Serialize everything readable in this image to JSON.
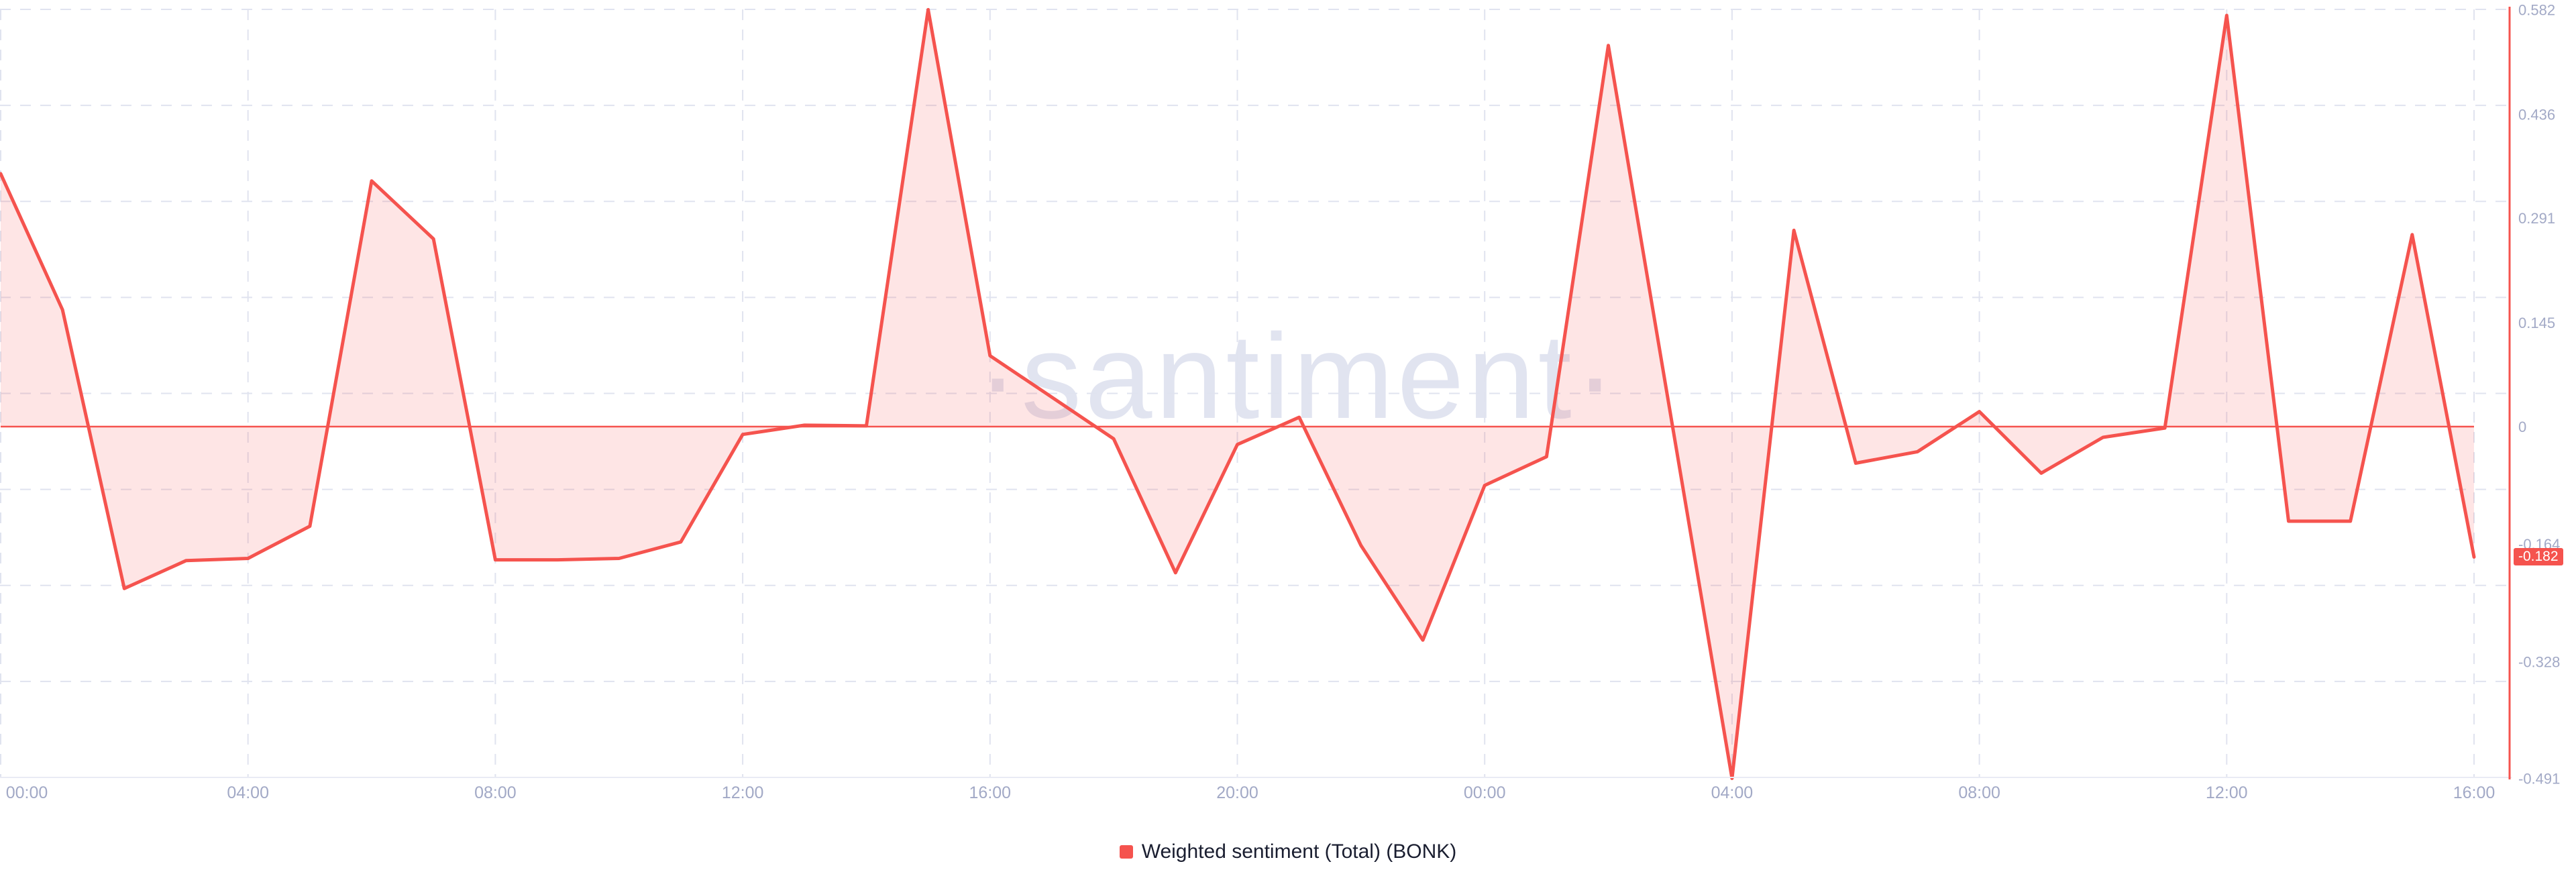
{
  "watermark": "·santiment·",
  "legend": {
    "label": "Weighted sentiment (Total) (BONK)",
    "marker_color": "#f5534e"
  },
  "y_axis": {
    "labels": [
      "0.582",
      "0.436",
      "0.291",
      "0.145",
      "0",
      "-0.164",
      "-0.328",
      "-0.491"
    ],
    "values": [
      0.582,
      0.436,
      0.291,
      0.145,
      0,
      -0.164,
      -0.328,
      -0.491
    ],
    "current_value_badge": "-0.182",
    "label_color": "#a2a9c6",
    "axis_line_color": "#f5534e"
  },
  "x_axis": {
    "labels": [
      "00:00",
      "04:00",
      "08:00",
      "12:00",
      "16:00",
      "20:00",
      "00:00",
      "04:00",
      "08:00",
      "12:00",
      "16:00"
    ],
    "tick_hours": [
      0,
      4,
      8,
      12,
      16,
      20,
      24,
      28,
      32,
      36,
      40
    ],
    "label_color": "#a2a9c6"
  },
  "chart_data": {
    "type": "area",
    "title": "Weighted sentiment (Total) (BONK)",
    "x": [
      "00:00",
      "01:00",
      "02:00",
      "03:00",
      "04:00",
      "05:00",
      "06:00",
      "07:00",
      "08:00",
      "09:00",
      "10:00",
      "11:00",
      "12:00",
      "13:00",
      "14:00",
      "15:00",
      "16:00",
      "17:00",
      "18:00",
      "19:00",
      "20:00",
      "21:00",
      "22:00",
      "23:00",
      "00:00",
      "01:00",
      "02:00",
      "03:00",
      "04:00",
      "05:00",
      "06:00",
      "07:00",
      "08:00",
      "09:00",
      "10:00",
      "11:00",
      "12:00",
      "13:00",
      "14:00",
      "15:00",
      "16:00"
    ],
    "values": [
      0.353,
      0.163,
      -0.226,
      -0.187,
      -0.184,
      -0.139,
      0.343,
      0.262,
      -0.186,
      -0.186,
      -0.184,
      -0.161,
      -0.011,
      0.002,
      0.001,
      0.582,
      0.099,
      0.041,
      -0.017,
      -0.204,
      -0.025,
      0.013,
      -0.166,
      -0.298,
      -0.082,
      -0.042,
      0.532,
      0.02,
      -0.491,
      0.274,
      -0.051,
      -0.035,
      0.021,
      -0.065,
      -0.015,
      -0.002,
      0.574,
      -0.132,
      -0.132,
      0.268,
      -0.182
    ],
    "last_value": -0.182,
    "threshold": 0,
    "ylim": [
      -0.491,
      0.582
    ],
    "line_color": "#f5534e",
    "fill_color": "rgba(245,83,78,0.15)",
    "grid": "dashed",
    "grid_color": "#e0e3ef",
    "bottom_axis_color": "#e9ebf4",
    "legend_position": "bottom-center"
  }
}
